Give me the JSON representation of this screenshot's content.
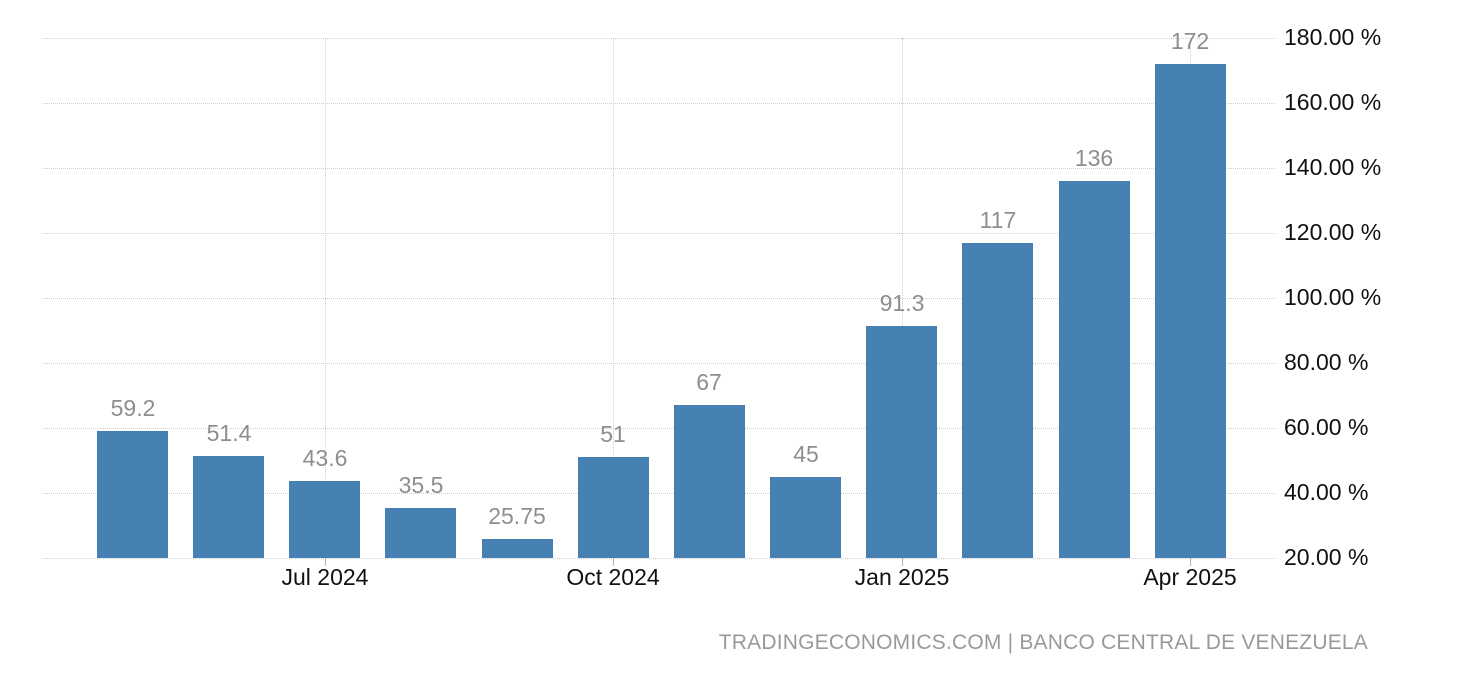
{
  "chart_data": {
    "type": "bar",
    "values": [
      59.2,
      51.4,
      43.6,
      35.5,
      25.75,
      51,
      67,
      45,
      91.3,
      117,
      136,
      172
    ],
    "value_labels": [
      "59.2",
      "51.4",
      "43.6",
      "35.5",
      "25.75",
      "51",
      "67",
      "45",
      "91.3",
      "117",
      "136",
      "172"
    ],
    "x_tick_labels": [
      {
        "bar_index": 2,
        "label": "Jul 2024"
      },
      {
        "bar_index": 5,
        "label": "Oct 2024"
      },
      {
        "bar_index": 8,
        "label": "Jan 2025"
      },
      {
        "bar_index": 11,
        "label": "Apr 2025"
      }
    ],
    "y_axis": {
      "position": "right",
      "min": 20,
      "max": 180,
      "step": 20,
      "unit": "%",
      "tick_labels": [
        {
          "value": 180,
          "label": "180.00 %"
        },
        {
          "value": 160,
          "label": "160.00 %"
        },
        {
          "value": 140,
          "label": "140.00 %"
        },
        {
          "value": 120,
          "label": "120.00 %"
        },
        {
          "value": 100,
          "label": "100.00 %"
        },
        {
          "value": 80,
          "label": "80.00 %"
        },
        {
          "value": 60,
          "label": "60.00 %"
        },
        {
          "value": 40,
          "label": "40.00 %"
        },
        {
          "value": 20,
          "label": "20.00 %"
        }
      ]
    },
    "grid": {
      "horizontal": true,
      "vertical_at_x_ticks": true,
      "style": "dotted"
    },
    "legend": null,
    "title": "",
    "attribution": "TRADINGECONOMICS.COM | BANCO CENTRAL DE VENEZUELA",
    "colors": {
      "background": "#ffffff",
      "bar": "#4781b3",
      "value_label": "#8e8e8e",
      "axis_label": "#111111",
      "gridline": "#cdcdcd",
      "attribution": "#999999"
    }
  }
}
